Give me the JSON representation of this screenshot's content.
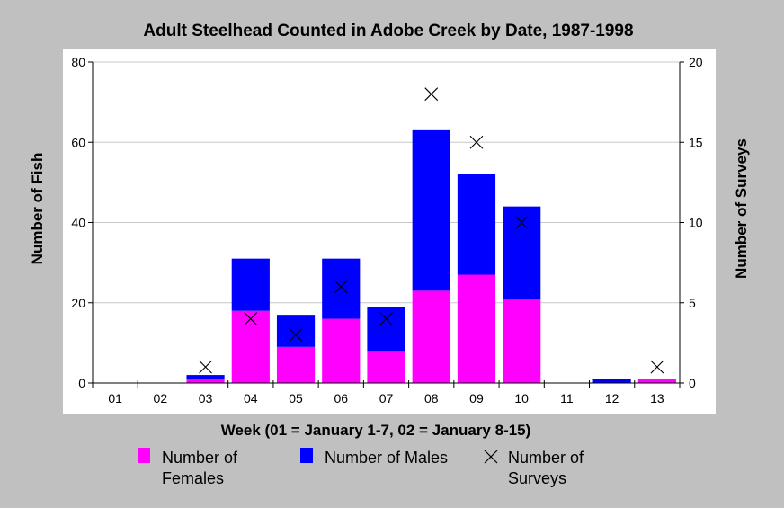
{
  "chart_data": {
    "type": "bar",
    "title": "Adult Steelhead Counted in Adobe Creek by Date, 1987-1998",
    "xlabel": "Week (01 = January 1-7, 02 = January 8-15)",
    "ylabel": "Number of Fish",
    "y2label": "Number of Surveys",
    "categories": [
      "01",
      "02",
      "03",
      "04",
      "05",
      "06",
      "07",
      "08",
      "09",
      "10",
      "11",
      "12",
      "13"
    ],
    "stacked": true,
    "ylim": [
      0,
      80
    ],
    "y2lim": [
      0,
      20
    ],
    "yticks": [
      "0",
      "20",
      "40",
      "60",
      "80"
    ],
    "y2ticks": [
      "0",
      "5",
      "10",
      "15",
      "20"
    ],
    "grid": true,
    "legend_position": "bottom",
    "series": [
      {
        "name": "Number of Females",
        "kind": "bar",
        "axis": "left",
        "color": "#ff00ff",
        "values": [
          0,
          0,
          1,
          18,
          9,
          16,
          8,
          23,
          27,
          21,
          0,
          0,
          1
        ]
      },
      {
        "name": "Number of Males",
        "kind": "bar",
        "axis": "left",
        "color": "#0000ff",
        "values": [
          0,
          0,
          1,
          13,
          8,
          15,
          11,
          40,
          25,
          23,
          0,
          1,
          0
        ]
      },
      {
        "name": "Number of Surveys",
        "kind": "marker",
        "marker": "x",
        "axis": "right",
        "color": "#000000",
        "values": [
          null,
          null,
          1,
          4,
          3,
          6,
          4,
          18,
          15,
          10,
          null,
          null,
          1
        ]
      }
    ],
    "legend": {
      "females": [
        "Number of",
        "Females"
      ],
      "males": [
        "Number of Males"
      ],
      "surveys": [
        "Number of",
        "Surveys"
      ]
    }
  }
}
